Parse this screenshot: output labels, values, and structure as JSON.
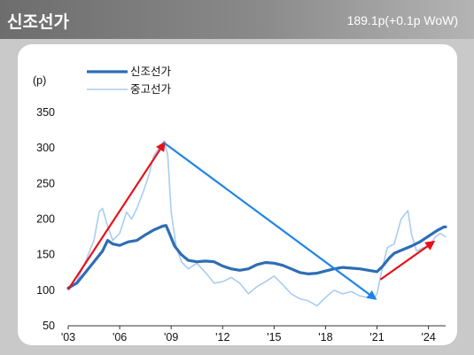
{
  "header": {
    "title": "신조선가",
    "value": "189.1p(+0.1p WoW)"
  },
  "chart_data": {
    "type": "line",
    "title": "신조선가",
    "yunit": "(p)",
    "ylim": [
      50,
      350
    ],
    "yticks": [
      50,
      100,
      150,
      200,
      250,
      300,
      350
    ],
    "xlim": [
      2003,
      2025
    ],
    "xticks": [
      {
        "value": 2003,
        "label": "'03"
      },
      {
        "value": 2006,
        "label": "'06"
      },
      {
        "value": 2009,
        "label": "'09"
      },
      {
        "value": 2012,
        "label": "'12"
      },
      {
        "value": 2015,
        "label": "'15"
      },
      {
        "value": 2018,
        "label": "'18"
      },
      {
        "value": 2021,
        "label": "'21"
      },
      {
        "value": 2024,
        "label": "'24"
      }
    ],
    "grid": false,
    "legend_position": "top-left",
    "series": [
      {
        "name": "신조선가",
        "color": "#2e6db4",
        "points": [
          [
            2003.0,
            103
          ],
          [
            2003.5,
            110
          ],
          [
            2004.0,
            125
          ],
          [
            2004.5,
            140
          ],
          [
            2005.0,
            155
          ],
          [
            2005.3,
            170
          ],
          [
            2005.6,
            165
          ],
          [
            2006.0,
            163
          ],
          [
            2006.5,
            168
          ],
          [
            2007.0,
            170
          ],
          [
            2007.5,
            178
          ],
          [
            2008.0,
            185
          ],
          [
            2008.5,
            190
          ],
          [
            2008.7,
            191
          ],
          [
            2008.9,
            180
          ],
          [
            2009.2,
            162
          ],
          [
            2009.6,
            150
          ],
          [
            2010.0,
            142
          ],
          [
            2010.5,
            140
          ],
          [
            2011.0,
            141
          ],
          [
            2011.5,
            140
          ],
          [
            2012.0,
            134
          ],
          [
            2012.5,
            130
          ],
          [
            2013.0,
            128
          ],
          [
            2013.5,
            130
          ],
          [
            2014.0,
            136
          ],
          [
            2014.5,
            139
          ],
          [
            2015.0,
            138
          ],
          [
            2015.5,
            135
          ],
          [
            2016.0,
            130
          ],
          [
            2016.5,
            125
          ],
          [
            2017.0,
            123
          ],
          [
            2017.5,
            124
          ],
          [
            2018.0,
            127
          ],
          [
            2018.5,
            130
          ],
          [
            2019.0,
            132
          ],
          [
            2019.5,
            131
          ],
          [
            2020.0,
            130
          ],
          [
            2020.5,
            128
          ],
          [
            2021.0,
            126
          ],
          [
            2021.3,
            133
          ],
          [
            2021.7,
            145
          ],
          [
            2022.0,
            152
          ],
          [
            2022.5,
            157
          ],
          [
            2023.0,
            162
          ],
          [
            2023.5,
            168
          ],
          [
            2024.0,
            176
          ],
          [
            2024.5,
            184
          ],
          [
            2024.9,
            189
          ],
          [
            2025.0,
            189
          ]
        ]
      },
      {
        "name": "중고선가",
        "color": "#a9cdf0",
        "points": [
          [
            2003.0,
            100
          ],
          [
            2003.5,
            112
          ],
          [
            2004.0,
            140
          ],
          [
            2004.5,
            170
          ],
          [
            2004.8,
            210
          ],
          [
            2005.0,
            215
          ],
          [
            2005.3,
            190
          ],
          [
            2005.6,
            170
          ],
          [
            2006.0,
            180
          ],
          [
            2006.4,
            210
          ],
          [
            2006.7,
            200
          ],
          [
            2007.0,
            215
          ],
          [
            2007.4,
            240
          ],
          [
            2007.7,
            262
          ],
          [
            2008.0,
            290
          ],
          [
            2008.3,
            300
          ],
          [
            2008.6,
            310
          ],
          [
            2008.8,
            290
          ],
          [
            2009.0,
            210
          ],
          [
            2009.3,
            160
          ],
          [
            2009.6,
            140
          ],
          [
            2010.0,
            130
          ],
          [
            2010.5,
            138
          ],
          [
            2011.0,
            125
          ],
          [
            2011.5,
            110
          ],
          [
            2012.0,
            112
          ],
          [
            2012.5,
            118
          ],
          [
            2013.0,
            110
          ],
          [
            2013.5,
            95
          ],
          [
            2014.0,
            105
          ],
          [
            2014.5,
            112
          ],
          [
            2015.0,
            120
          ],
          [
            2015.5,
            108
          ],
          [
            2016.0,
            95
          ],
          [
            2016.5,
            88
          ],
          [
            2017.0,
            85
          ],
          [
            2017.5,
            78
          ],
          [
            2018.0,
            90
          ],
          [
            2018.5,
            100
          ],
          [
            2019.0,
            95
          ],
          [
            2019.5,
            98
          ],
          [
            2020.0,
            92
          ],
          [
            2020.5,
            90
          ],
          [
            2020.8,
            88
          ],
          [
            2021.0,
            95
          ],
          [
            2021.3,
            130
          ],
          [
            2021.6,
            160
          ],
          [
            2022.0,
            165
          ],
          [
            2022.4,
            200
          ],
          [
            2022.8,
            212
          ],
          [
            2023.0,
            180
          ],
          [
            2023.3,
            155
          ],
          [
            2023.7,
            160
          ],
          [
            2024.0,
            160
          ],
          [
            2024.4,
            175
          ],
          [
            2024.7,
            180
          ],
          [
            2025.0,
            175
          ]
        ]
      }
    ],
    "annotations": [
      {
        "type": "arrow",
        "color": "#e5121a",
        "from": [
          2003.0,
          101
        ],
        "to": [
          2008.6,
          307
        ]
      },
      {
        "type": "arrow",
        "color": "#1f84e8",
        "from": [
          2008.6,
          307
        ],
        "to": [
          2020.9,
          88
        ]
      },
      {
        "type": "arrow",
        "color": "#e5121a",
        "from": [
          2021.2,
          115
        ],
        "to": [
          2024.3,
          168
        ]
      }
    ]
  }
}
